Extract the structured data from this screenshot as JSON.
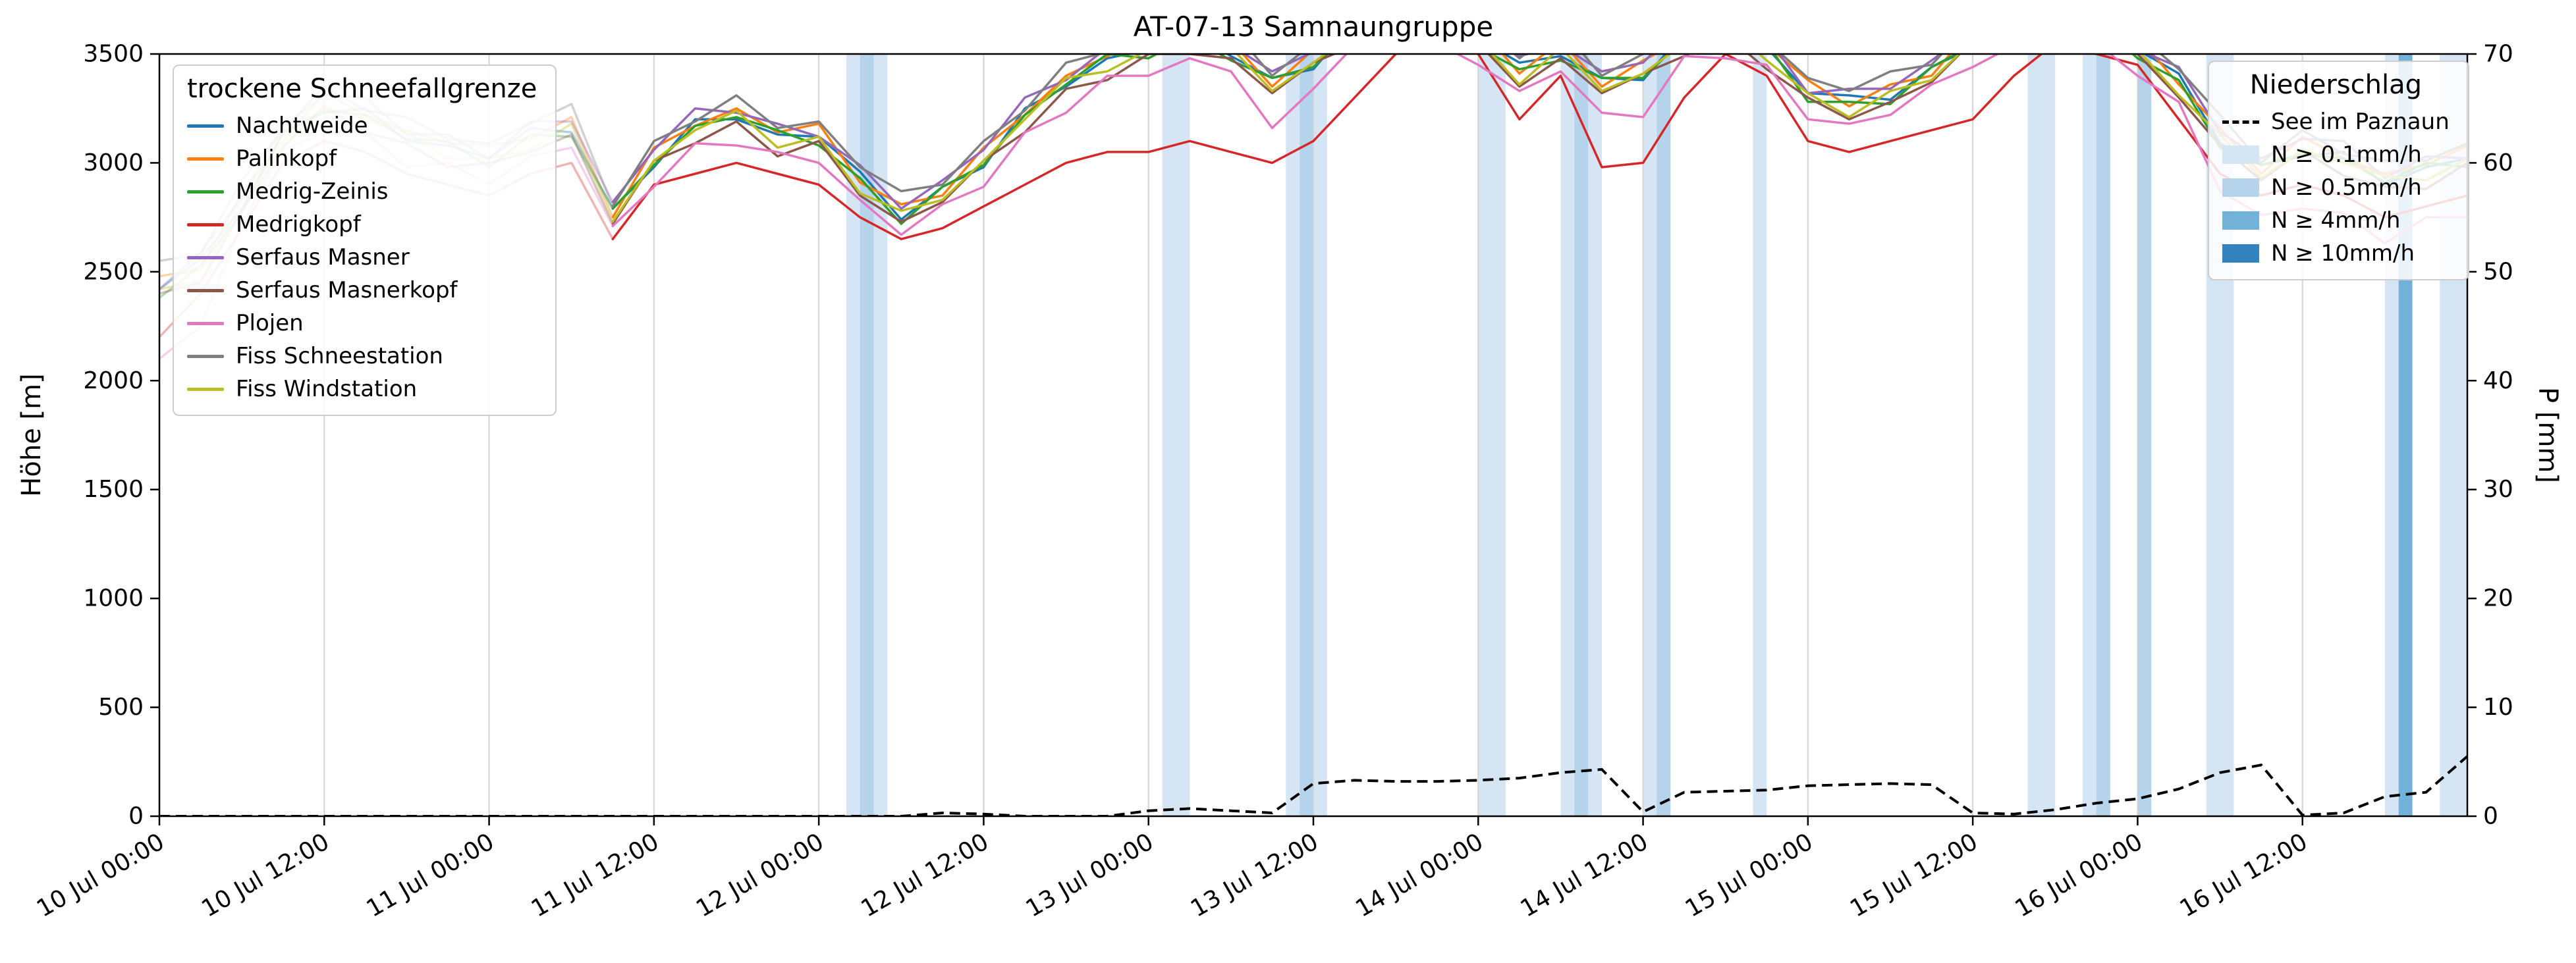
{
  "chart_data": {
    "type": "line",
    "title": "AT-07-13 Samnaungruppe",
    "ylabel_left": "Höhe [m]",
    "ylabel_right": "P [mm]",
    "ylim_left": [
      0,
      3500
    ],
    "ylim_right": [
      0,
      70
    ],
    "yticks_left": [
      0,
      500,
      1000,
      1500,
      2000,
      2500,
      3000,
      3500
    ],
    "yticks_right": [
      0,
      10,
      20,
      30,
      40,
      50,
      60,
      70
    ],
    "x_unit": "hours since 10 Jul 00:00",
    "x_range_hours": [
      0,
      168
    ],
    "xtick_hours": [
      0,
      12,
      24,
      36,
      48,
      60,
      72,
      84,
      96,
      108,
      120,
      132,
      144,
      156
    ],
    "xtick_labels": [
      "10 Jul 00:00",
      "10 Jul 12:00",
      "11 Jul 00:00",
      "11 Jul 12:00",
      "12 Jul 00:00",
      "12 Jul 12:00",
      "13 Jul 00:00",
      "13 Jul 12:00",
      "14 Jul 00:00",
      "14 Jul 12:00",
      "15 Jul 00:00",
      "15 Jul 12:00",
      "16 Jul 00:00",
      "16 Jul 12:00"
    ],
    "legend_left_title": "trockene Schneefallgrenze",
    "legend_right_title": "Niederschlag",
    "solid_from_hour": 33,
    "faded_alpha": 0.35,
    "grid": {
      "vertical": true,
      "horizontal": false,
      "color": "#d4d4d4"
    },
    "x_hours": [
      0,
      3,
      6,
      9,
      12,
      15,
      18,
      21,
      24,
      27,
      30,
      33,
      36,
      39,
      42,
      45,
      48,
      51,
      54,
      57,
      60,
      63,
      66,
      69,
      72,
      75,
      78,
      81,
      84,
      87,
      90,
      93,
      96,
      99,
      102,
      105,
      108,
      111,
      114,
      117,
      120,
      123,
      126,
      129,
      132,
      135,
      138,
      141,
      144,
      147,
      150,
      153,
      156,
      159,
      162,
      165,
      168
    ],
    "series": [
      {
        "name": "Nachtweide",
        "color": "#1f77b4",
        "values": [
          2420,
          2560,
          2790,
          3140,
          3230,
          3250,
          3100,
          3080,
          3020,
          3160,
          3140,
          2790,
          2980,
          3200,
          3200,
          3130,
          3120,
          2960,
          2740,
          2890,
          2980,
          3250,
          3350,
          3480,
          3520,
          3610,
          3490,
          3390,
          3430,
          3650,
          3650,
          3630,
          3570,
          3460,
          3490,
          3390,
          3380,
          3600,
          3600,
          3530,
          3320,
          3310,
          3290,
          3440,
          3530,
          3650,
          3650,
          3630,
          3520,
          3410,
          3090,
          2990,
          3030,
          3050,
          2900,
          2980,
          3020
        ]
      },
      {
        "name": "Palinkopf",
        "color": "#ff7f0e",
        "values": [
          2480,
          2510,
          2860,
          3100,
          3320,
          3220,
          3150,
          3090,
          3080,
          3110,
          3210,
          2750,
          3070,
          3170,
          3250,
          3140,
          3180,
          2910,
          2810,
          2850,
          3070,
          3220,
          3400,
          3490,
          3580,
          3560,
          3560,
          3350,
          3520,
          3620,
          3700,
          3640,
          3630,
          3410,
          3560,
          3350,
          3470,
          3570,
          3650,
          3540,
          3380,
          3260,
          3360,
          3400,
          3620,
          3620,
          3700,
          3640,
          3580,
          3360,
          3160,
          2950,
          3120,
          3020,
          2950,
          2990,
          3080
        ]
      },
      {
        "name": "Medrig-Zeinis",
        "color": "#2ca02c",
        "values": [
          2380,
          2530,
          2770,
          3140,
          3240,
          3220,
          3110,
          3100,
          2980,
          3130,
          3120,
          2790,
          2990,
          3170,
          3210,
          3150,
          3080,
          2930,
          2720,
          2890,
          2990,
          3220,
          3360,
          3500,
          3480,
          3580,
          3470,
          3390,
          3440,
          3620,
          3660,
          3650,
          3530,
          3430,
          3470,
          3390,
          3390,
          3570,
          3610,
          3550,
          3280,
          3280,
          3270,
          3440,
          3540,
          3620,
          3660,
          3650,
          3480,
          3380,
          3070,
          2990,
          3040,
          3020,
          2910,
          3000,
          2980
        ]
      },
      {
        "name": "Medrigkopf",
        "color": "#d62728",
        "values": [
          2200,
          2400,
          2700,
          3000,
          3100,
          3050,
          2950,
          2900,
          2850,
          2950,
          3000,
          2650,
          2900,
          2950,
          3000,
          2950,
          2900,
          2750,
          2650,
          2700,
          2800,
          2900,
          3000,
          3050,
          3050,
          3100,
          3050,
          3000,
          3100,
          3300,
          3500,
          3550,
          3500,
          3200,
          3400,
          2980,
          3000,
          3300,
          3500,
          3400,
          3100,
          3050,
          3100,
          3150,
          3200,
          3400,
          3550,
          3500,
          3450,
          3200,
          2950,
          2850,
          2900,
          2850,
          2750,
          2800,
          2850
        ]
      },
      {
        "name": "Serfaus Masner",
        "color": "#9467bd",
        "values": [
          2420,
          2590,
          2840,
          3170,
          3310,
          3300,
          3130,
          3130,
          3020,
          3190,
          3190,
          2820,
          3060,
          3250,
          3230,
          3180,
          3120,
          2990,
          2790,
          2920,
          3060,
          3300,
          3380,
          3530,
          3520,
          3640,
          3540,
          3420,
          3510,
          3700,
          3680,
          3680,
          3570,
          3490,
          3540,
          3420,
          3460,
          3650,
          3630,
          3580,
          3320,
          3340,
          3340,
          3470,
          3610,
          3700,
          3680,
          3680,
          3520,
          3440,
          3140,
          3020,
          3110,
          3100,
          2930,
          3030,
          3020
        ]
      },
      {
        "name": "Serfaus Masnerkopf",
        "color": "#8c564b",
        "values": [
          2400,
          2450,
          2780,
          3070,
          3260,
          3140,
          3090,
          2980,
          3000,
          3050,
          3130,
          2720,
          3010,
          3090,
          3190,
          3030,
          3100,
          2850,
          2730,
          2820,
          3010,
          3140,
          3340,
          3380,
          3500,
          3500,
          3480,
          3320,
          3460,
          3540,
          3640,
          3530,
          3550,
          3350,
          3480,
          3320,
          3410,
          3490,
          3590,
          3430,
          3300,
          3200,
          3280,
          3370,
          3560,
          3540,
          3640,
          3530,
          3500,
          3300,
          3080,
          2920,
          3060,
          2940,
          2890,
          2880,
          3000
        ]
      },
      {
        "name": "Plojen",
        "color": "#e377c2",
        "values": [
          2100,
          2250,
          2720,
          3060,
          3140,
          3140,
          2980,
          3000,
          2900,
          3030,
          3070,
          2710,
          2890,
          3090,
          3080,
          3050,
          3000,
          2830,
          2670,
          2810,
          2890,
          3140,
          3230,
          3400,
          3400,
          3480,
          3420,
          3160,
          3340,
          3540,
          3530,
          3550,
          3450,
          3330,
          3420,
          3230,
          3210,
          3490,
          3480,
          3450,
          3200,
          3180,
          3220,
          3360,
          3440,
          3540,
          3530,
          3550,
          3400,
          3280,
          2870,
          2760,
          2790,
          2770,
          2630,
          2750,
          2750
        ]
      },
      {
        "name": "Fiss Schneestation",
        "color": "#7f7f7f",
        "values": [
          2550,
          2580,
          2920,
          3150,
          3350,
          3240,
          3210,
          3110,
          3090,
          3180,
          3270,
          2800,
          3100,
          3190,
          3310,
          3160,
          3190,
          2980,
          2870,
          2900,
          3100,
          3240,
          3460,
          3510,
          3590,
          3630,
          3620,
          3400,
          3550,
          3640,
          3760,
          3660,
          3640,
          3480,
          3620,
          3400,
          3500,
          3590,
          3710,
          3560,
          3390,
          3330,
          3420,
          3450,
          3650,
          3640,
          3760,
          3660,
          3590,
          3430,
          3220,
          3000,
          3150,
          3040,
          3010,
          3010,
          3090
        ]
      },
      {
        "name": "Fiss Windstation",
        "color": "#bcbd22",
        "values": [
          2420,
          2460,
          2830,
          3080,
          3260,
          3200,
          3140,
          3020,
          3020,
          3060,
          3180,
          2730,
          3010,
          3150,
          3240,
          3070,
          3120,
          2860,
          2780,
          2830,
          3010,
          3200,
          3390,
          3420,
          3520,
          3510,
          3530,
          3330,
          3460,
          3600,
          3690,
          3570,
          3570,
          3360,
          3530,
          3330,
          3410,
          3550,
          3640,
          3470,
          3320,
          3210,
          3330,
          3380,
          3560,
          3600,
          3690,
          3570,
          3520,
          3310,
          3130,
          2930,
          3060,
          3000,
          2940,
          2920,
          3020
        ]
      }
    ],
    "lake_series": {
      "name": "See im Paznaun",
      "axis": "right",
      "color": "#000000",
      "dashed": true,
      "values": [
        0,
        0,
        0,
        0,
        0,
        0,
        0,
        0,
        0,
        0,
        0,
        0,
        0,
        0,
        0,
        0,
        0,
        0,
        0,
        0.3,
        0.2,
        0,
        0,
        0,
        0.5,
        0.7,
        0.5,
        0.3,
        3.0,
        3.3,
        3.2,
        3.2,
        3.3,
        3.5,
        4.0,
        4.3,
        0.4,
        2.2,
        2.3,
        2.4,
        2.8,
        2.9,
        3.0,
        2.9,
        0.3,
        0.2,
        0.6,
        1.2,
        1.6,
        2.5,
        4.0,
        4.7,
        0.1,
        0.3,
        1.8,
        2.2,
        5.5
      ]
    },
    "precip_levels": [
      {
        "level": "0.1",
        "label": "N ≥ 0.1mm/h",
        "color": "#d6e5f4"
      },
      {
        "level": "0.5",
        "label": "N ≥ 0.5mm/h",
        "color": "#b5d3ea"
      },
      {
        "level": "4",
        "label": "N ≥ 4mm/h",
        "color": "#72b1d8"
      },
      {
        "level": "10",
        "label": "N ≥ 10mm/h",
        "color": "#3282be"
      }
    ],
    "precip_bands": [
      {
        "start_h": 50,
        "end_h": 53,
        "level": "0.1"
      },
      {
        "start_h": 51,
        "end_h": 52,
        "level": "0.5"
      },
      {
        "start_h": 73,
        "end_h": 75,
        "level": "0.1"
      },
      {
        "start_h": 82,
        "end_h": 85,
        "level": "0.1"
      },
      {
        "start_h": 83,
        "end_h": 84,
        "level": "0.5"
      },
      {
        "start_h": 96,
        "end_h": 98,
        "level": "0.1"
      },
      {
        "start_h": 102,
        "end_h": 105,
        "level": "0.1"
      },
      {
        "start_h": 103,
        "end_h": 104,
        "level": "0.5"
      },
      {
        "start_h": 108,
        "end_h": 110,
        "level": "0.1"
      },
      {
        "start_h": 109,
        "end_h": 110,
        "level": "0.5"
      },
      {
        "start_h": 116,
        "end_h": 117,
        "level": "0.1"
      },
      {
        "start_h": 136,
        "end_h": 138,
        "level": "0.1"
      },
      {
        "start_h": 140,
        "end_h": 142,
        "level": "0.1"
      },
      {
        "start_h": 141,
        "end_h": 142,
        "level": "0.5"
      },
      {
        "start_h": 144,
        "end_h": 145,
        "level": "0.5"
      },
      {
        "start_h": 149,
        "end_h": 151,
        "level": "0.1"
      },
      {
        "start_h": 162,
        "end_h": 164,
        "level": "0.1"
      },
      {
        "start_h": 163,
        "end_h": 164,
        "level": "4"
      },
      {
        "start_h": 166,
        "end_h": 168,
        "level": "0.1"
      }
    ]
  }
}
